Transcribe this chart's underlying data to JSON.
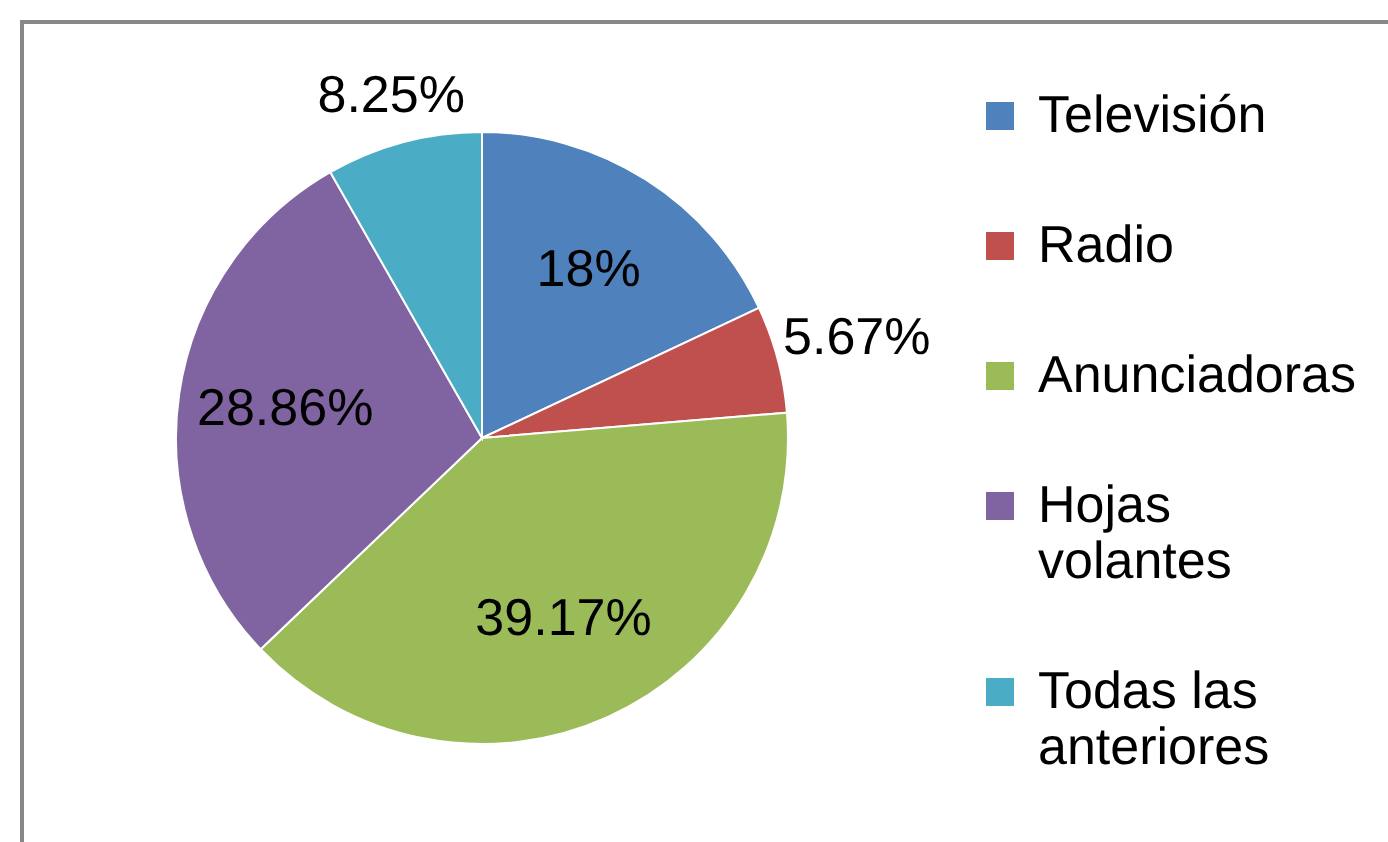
{
  "chart_data": {
    "type": "pie",
    "categories": [
      "Televisión",
      "Radio",
      "Anunciadoras",
      "Hojas volantes",
      "Todas las anteriores"
    ],
    "values": [
      18,
      5.67,
      39.17,
      28.86,
      8.25
    ],
    "colors": [
      "#4f81bd",
      "#c0504d",
      "#9bbb59",
      "#8064a2",
      "#4bacc6"
    ],
    "value_labels": [
      "18%",
      "5.67%",
      "39.17%",
      "28.86%",
      "8.25%"
    ],
    "legend": "right"
  }
}
